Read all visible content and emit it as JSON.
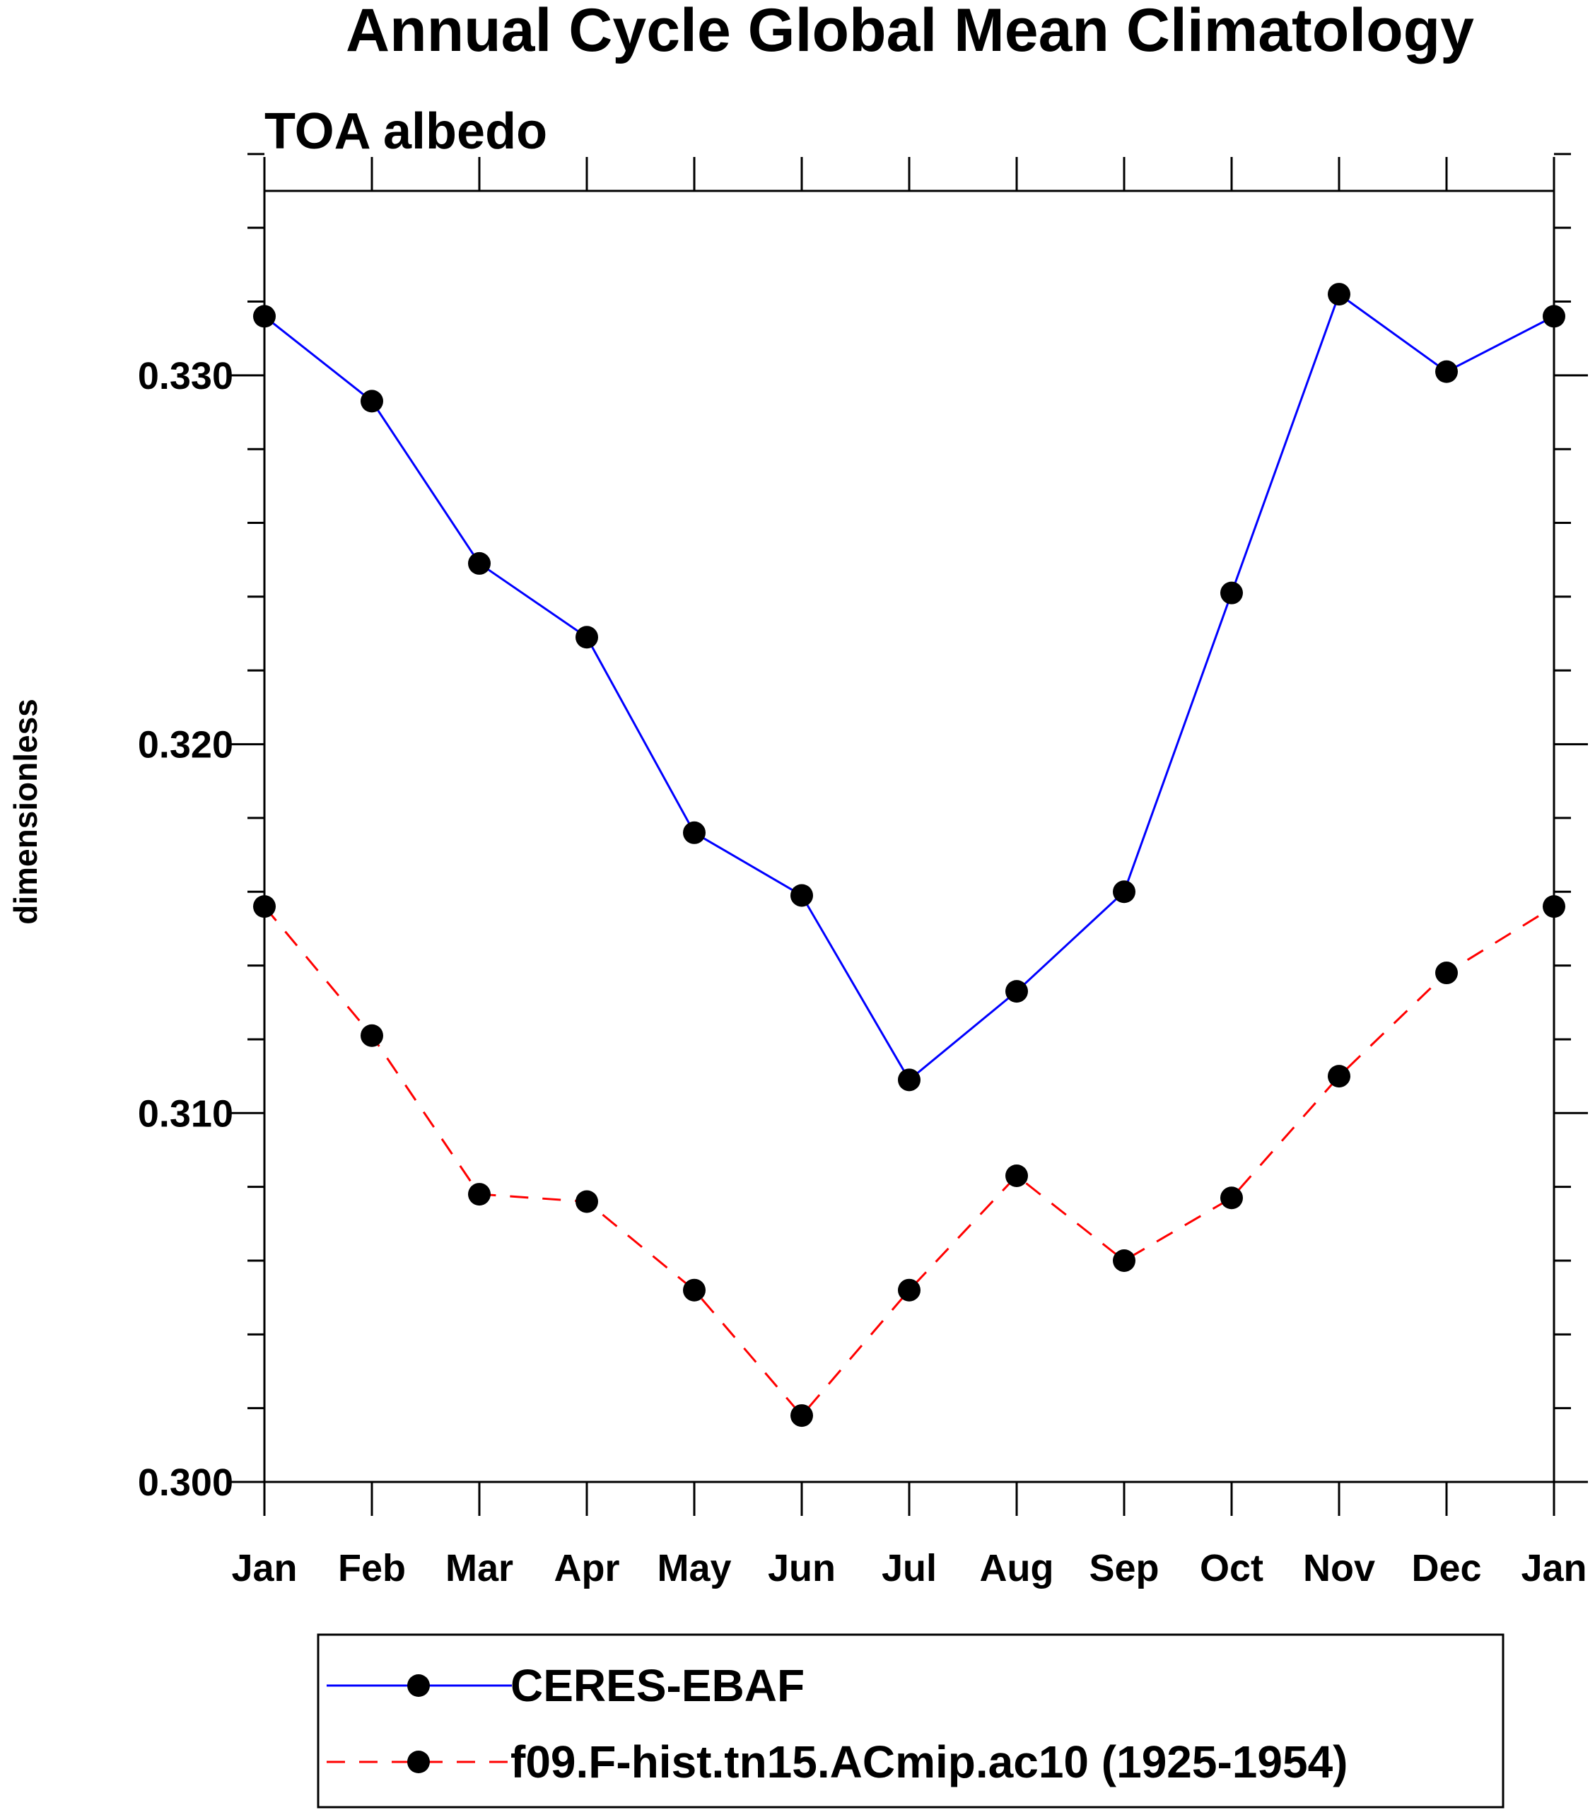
{
  "chart_data": {
    "type": "line",
    "title": "Annual Cycle Global Mean Climatology",
    "subtitle": "TOA albedo",
    "xlabel": "",
    "ylabel": "dimensionless",
    "categories": [
      "Jan",
      "Feb",
      "Mar",
      "Apr",
      "May",
      "Jun",
      "Jul",
      "Aug",
      "Sep",
      "Oct",
      "Nov",
      "Dec",
      "Jan"
    ],
    "ylim": [
      0.3,
      0.335
    ],
    "yticks": [
      0.3,
      0.31,
      0.32,
      0.33
    ],
    "ytick_labels": [
      "0.300",
      "0.310",
      "0.320",
      "0.330"
    ],
    "yminor_step": 0.002,
    "grid": false,
    "legend_position": "bottom",
    "series": [
      {
        "name": "CERES-EBAF",
        "color": "#0000ff",
        "line_style": "solid",
        "marker": "filled-circle",
        "values": [
          0.3316,
          0.3293,
          0.3249,
          0.3229,
          0.3176,
          0.3159,
          0.3109,
          0.3133,
          0.316,
          0.3241,
          0.3322,
          0.3301,
          0.3316
        ]
      },
      {
        "name": "f09.F-hist.tn15.ACmip.ac10 (1925-1954)",
        "color": "#ff0000",
        "line_style": "dashed",
        "marker": "filled-circle",
        "values": [
          0.3156,
          0.3121,
          0.3078,
          0.3076,
          0.3052,
          0.3018,
          0.3052,
          0.3083,
          0.306,
          0.3077,
          0.311,
          0.3138,
          0.3156
        ]
      }
    ]
  }
}
